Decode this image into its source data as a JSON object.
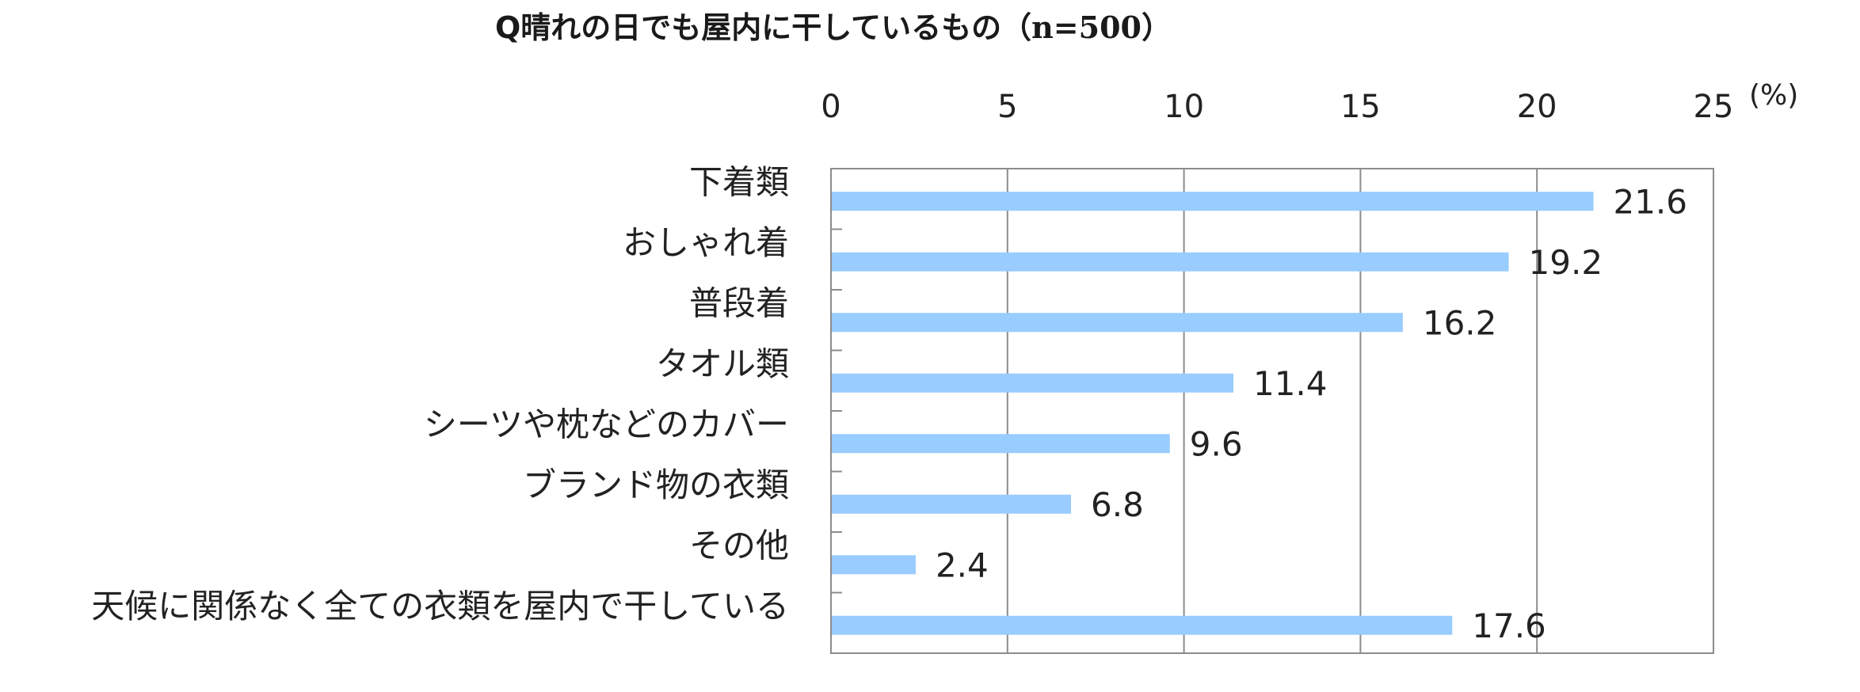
{
  "chart_data": {
    "type": "bar",
    "orientation": "horizontal",
    "title": "Q晴れの日でも屋内に干しているもの",
    "title_n": "（n=500）",
    "unit_label": "(%)",
    "xlim": [
      0,
      25
    ],
    "ticks": [
      0,
      5,
      10,
      15,
      20,
      25
    ],
    "tick_labels": [
      "0",
      "5",
      "10",
      "15",
      "20",
      "25"
    ],
    "x_axis_position": "top",
    "grid": true,
    "categories": [
      "下着類",
      "おしゃれ着",
      "普段着",
      "タオル類",
      "シーツや枕などのカバー",
      "ブランド物の衣類",
      "その他",
      "天候に関係なく全ての衣類を屋内で干している"
    ],
    "values": [
      21.6,
      19.2,
      16.2,
      11.4,
      9.6,
      6.8,
      2.4,
      17.6
    ],
    "value_labels": [
      "21.6",
      "19.2",
      "16.2",
      "11.4",
      "9.6",
      "6.8",
      "2.4",
      "17.6"
    ],
    "bar_color": "#99CCFF",
    "grid_color": "#8C8C8C"
  }
}
